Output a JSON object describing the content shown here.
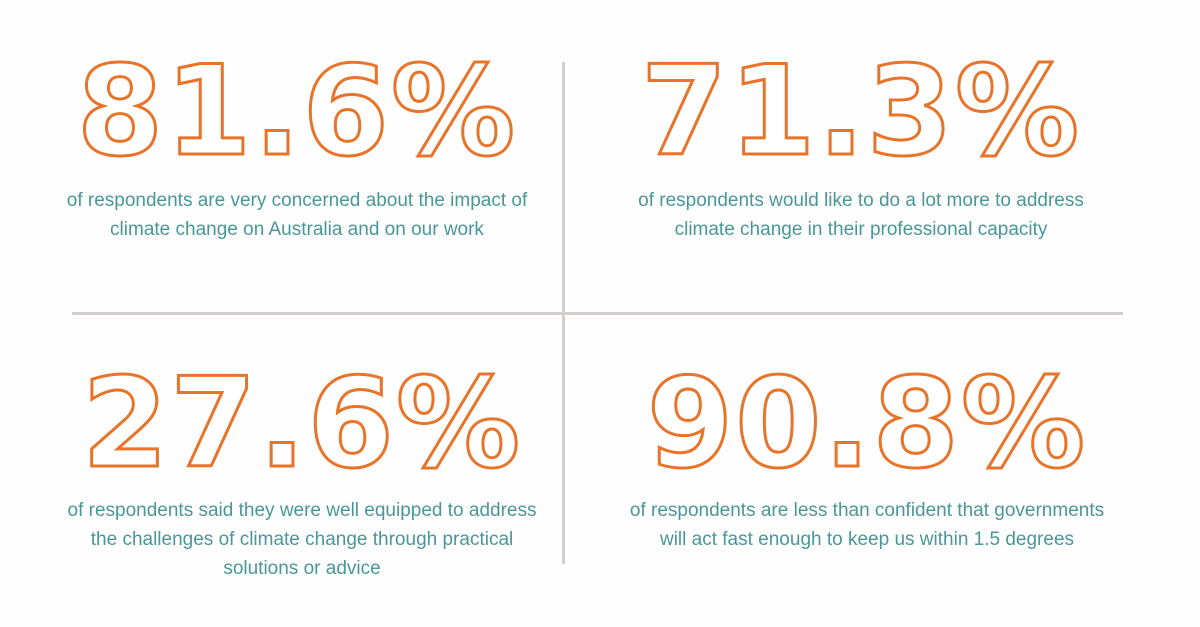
{
  "colors": {
    "accent": "#e8742a",
    "text": "#4a9799",
    "divider": "#d3cfcf",
    "background": "#fefefe"
  },
  "stats": [
    {
      "value": "81.6%",
      "description": "of respondents are very concerned about the impact of climate change on Australia and on our work"
    },
    {
      "value": "71.3%",
      "description": "of respondents would like to do a lot more to address climate change in their professional capacity"
    },
    {
      "value": "27.6%",
      "description": "of respondents said they were well equipped to address the challenges of climate change through practical solutions or advice"
    },
    {
      "value": "90.8%",
      "description": "of respondents are less than confident that governments will act fast enough to keep us within 1.5 degrees"
    }
  ]
}
